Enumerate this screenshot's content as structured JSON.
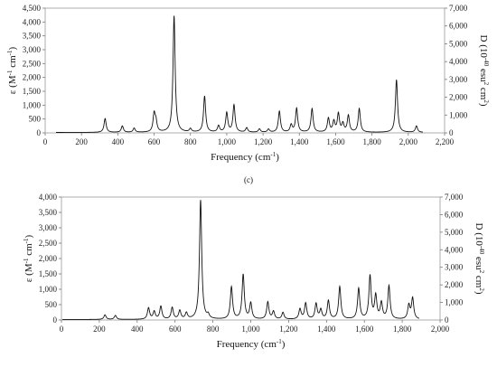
{
  "chart_data": [
    {
      "type": "line",
      "xlabel": "Frequency (cm",
      "xlabel_sup": "-1",
      "xlabel_end": ")",
      "ylabel_left": {
        "pre": "ε (M",
        "sup1": "-1",
        "mid": " cm",
        "sup2": "-1",
        "post": ")"
      },
      "ylabel_right": {
        "pre": "D (10",
        "sup1": "-40",
        "mid": " esu",
        "sup2": "2",
        "mid2": " cm",
        "sup3": "2",
        "post": ")"
      },
      "xlim": [
        0,
        2200
      ],
      "x_ticks": [
        0,
        200,
        400,
        600,
        800,
        1000,
        1200,
        1400,
        1600,
        1800,
        2000,
        2200
      ],
      "x_tick_labels": [
        "0",
        "200",
        "400",
        "600",
        "800",
        "1,000",
        "1,200",
        "1,400",
        "1,600",
        "1,800",
        "2,000",
        "2,200"
      ],
      "ylim_left": [
        0,
        4500
      ],
      "y_left_ticks": [
        0,
        500,
        1000,
        1500,
        2000,
        2500,
        3000,
        3500,
        4000,
        4500
      ],
      "y_left_tick_labels": [
        "0",
        "500",
        "1,000",
        "1,500",
        "2,000",
        "2,500",
        "3,000",
        "3,500",
        "4,000",
        "4,500"
      ],
      "ylim_right": [
        0,
        7000
      ],
      "y_right_ticks": [
        0,
        1000,
        2000,
        3000,
        4000,
        5000,
        6000,
        7000
      ],
      "y_right_tick_labels": [
        "0",
        "1,000",
        "2,000",
        "3,000",
        "4,000",
        "5,000",
        "6,000",
        "7,000"
      ],
      "grid": false,
      "baseline": 15,
      "x_range": [
        60,
        2080
      ],
      "peaks": [
        {
          "x": 330,
          "y": 500
        },
        {
          "x": 425,
          "y": 230
        },
        {
          "x": 490,
          "y": 150
        },
        {
          "x": 600,
          "y": 640
        },
        {
          "x": 610,
          "y": 350
        },
        {
          "x": 710,
          "y": 4200
        },
        {
          "x": 800,
          "y": 120
        },
        {
          "x": 878,
          "y": 1300
        },
        {
          "x": 955,
          "y": 230
        },
        {
          "x": 1000,
          "y": 700
        },
        {
          "x": 1040,
          "y": 980
        },
        {
          "x": 1110,
          "y": 160
        },
        {
          "x": 1180,
          "y": 120
        },
        {
          "x": 1230,
          "y": 110
        },
        {
          "x": 1290,
          "y": 760
        },
        {
          "x": 1355,
          "y": 260
        },
        {
          "x": 1385,
          "y": 860
        },
        {
          "x": 1470,
          "y": 850
        },
        {
          "x": 1560,
          "y": 500
        },
        {
          "x": 1590,
          "y": 380
        },
        {
          "x": 1615,
          "y": 660
        },
        {
          "x": 1640,
          "y": 300
        },
        {
          "x": 1670,
          "y": 600
        },
        {
          "x": 1730,
          "y": 850
        },
        {
          "x": 1935,
          "y": 1900
        },
        {
          "x": 2045,
          "y": 230
        }
      ]
    },
    {
      "type": "line",
      "caption": "(c)",
      "xlabel": "Frequency (cm",
      "xlabel_sup": "-1",
      "xlabel_end": ")",
      "ylabel_left": {
        "pre": "ε (M",
        "sup1": "-1",
        "mid": " cm",
        "sup2": "-1",
        "post": ")"
      },
      "ylabel_right": {
        "pre": "D (10",
        "sup1": "-40",
        "mid": " esu",
        "sup2": "2",
        "mid2": " cm",
        "sup3": "2",
        "post": ")"
      },
      "xlim": [
        0,
        2000
      ],
      "x_ticks": [
        0,
        200,
        400,
        600,
        800,
        1000,
        1200,
        1400,
        1600,
        1800,
        2000
      ],
      "x_tick_labels": [
        "0",
        "200",
        "400",
        "600",
        "800",
        "1,000",
        "1,200",
        "1,400",
        "1,600",
        "1,800",
        "2,000"
      ],
      "ylim_left": [
        0,
        4000
      ],
      "y_left_ticks": [
        0,
        500,
        1000,
        1500,
        2000,
        2500,
        3000,
        3500,
        4000
      ],
      "y_left_tick_labels": [
        "0",
        "500",
        "1,000",
        "1,500",
        "2,000",
        "2,500",
        "3,000",
        "3,500",
        "4,000"
      ],
      "ylim_right": [
        0,
        7000
      ],
      "y_right_ticks": [
        0,
        1000,
        2000,
        3000,
        4000,
        5000,
        6000,
        7000
      ],
      "y_right_tick_labels": [
        "0",
        "1,000",
        "2,000",
        "3,000",
        "4,000",
        "5,000",
        "6,000",
        "7,000"
      ],
      "grid": false,
      "baseline": 15,
      "x_range": [
        5,
        1890
      ],
      "peaks": [
        {
          "x": 230,
          "y": 150
        },
        {
          "x": 285,
          "y": 130
        },
        {
          "x": 460,
          "y": 370
        },
        {
          "x": 490,
          "y": 250
        },
        {
          "x": 525,
          "y": 420
        },
        {
          "x": 585,
          "y": 380
        },
        {
          "x": 625,
          "y": 280
        },
        {
          "x": 660,
          "y": 200
        },
        {
          "x": 735,
          "y": 3880
        },
        {
          "x": 775,
          "y": 120
        },
        {
          "x": 898,
          "y": 1050
        },
        {
          "x": 960,
          "y": 1450
        },
        {
          "x": 1000,
          "y": 520
        },
        {
          "x": 1090,
          "y": 560
        },
        {
          "x": 1120,
          "y": 250
        },
        {
          "x": 1170,
          "y": 220
        },
        {
          "x": 1260,
          "y": 330
        },
        {
          "x": 1290,
          "y": 520
        },
        {
          "x": 1345,
          "y": 500
        },
        {
          "x": 1370,
          "y": 300
        },
        {
          "x": 1410,
          "y": 600
        },
        {
          "x": 1470,
          "y": 1060
        },
        {
          "x": 1570,
          "y": 1000
        },
        {
          "x": 1630,
          "y": 1400
        },
        {
          "x": 1660,
          "y": 750
        },
        {
          "x": 1690,
          "y": 520
        },
        {
          "x": 1730,
          "y": 1080
        },
        {
          "x": 1835,
          "y": 450
        },
        {
          "x": 1855,
          "y": 680
        }
      ]
    }
  ]
}
